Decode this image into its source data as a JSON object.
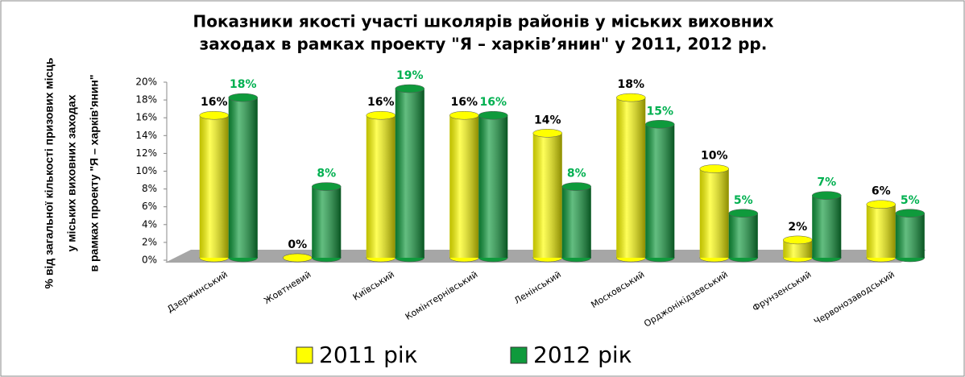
{
  "chart_data": {
    "type": "bar",
    "title": [
      "Показники якості участі школярів районів у  міських виховних",
      "заходах в рамках проекту \"Я – харків’янин\" у 2011, 2012 рр."
    ],
    "y_label": [
      "% від загальної кількості призових місць",
      "у міських виховних заходах",
      "в рамках проекту \"Я – харків’янин\""
    ],
    "categories": [
      "Дзержинський",
      "Жовтневий",
      "Київський",
      "Комінтернівський",
      "Ленінський",
      "Московський",
      "Орджонікідзевський",
      "Фрунзенський",
      "Червонозаводський"
    ],
    "series": [
      {
        "name": "2011 рік",
        "color": "#ffff00",
        "values": [
          16,
          0,
          16,
          16,
          14,
          18,
          10,
          2,
          6
        ],
        "value_labels": [
          "16%",
          "0%",
          "16%",
          "16%",
          "14%",
          "18%",
          "10%",
          "2%",
          "6%"
        ]
      },
      {
        "name": "2012 рік",
        "color": "#0f9a3c",
        "values": [
          18,
          8,
          19,
          16,
          8,
          15,
          5,
          7,
          5
        ],
        "value_labels": [
          "18%",
          "8%",
          "19%",
          "16%",
          "8%",
          "15%",
          "5%",
          "7%",
          "5%"
        ]
      }
    ],
    "ylim": [
      0,
      20
    ],
    "yticks": [
      {
        "value": 0,
        "label": "0%"
      },
      {
        "value": 2,
        "label": "2%"
      },
      {
        "value": 4,
        "label": "4%"
      },
      {
        "value": 6,
        "label": "6%"
      },
      {
        "value": 8,
        "label": "8%"
      },
      {
        "value": 10,
        "label": "10%"
      },
      {
        "value": 12,
        "label": "12%"
      },
      {
        "value": 14,
        "label": "14%"
      },
      {
        "value": 16,
        "label": "16%"
      },
      {
        "value": 18,
        "label": "18%"
      },
      {
        "value": 20,
        "label": "20%"
      }
    ],
    "legend": "bottom"
  }
}
